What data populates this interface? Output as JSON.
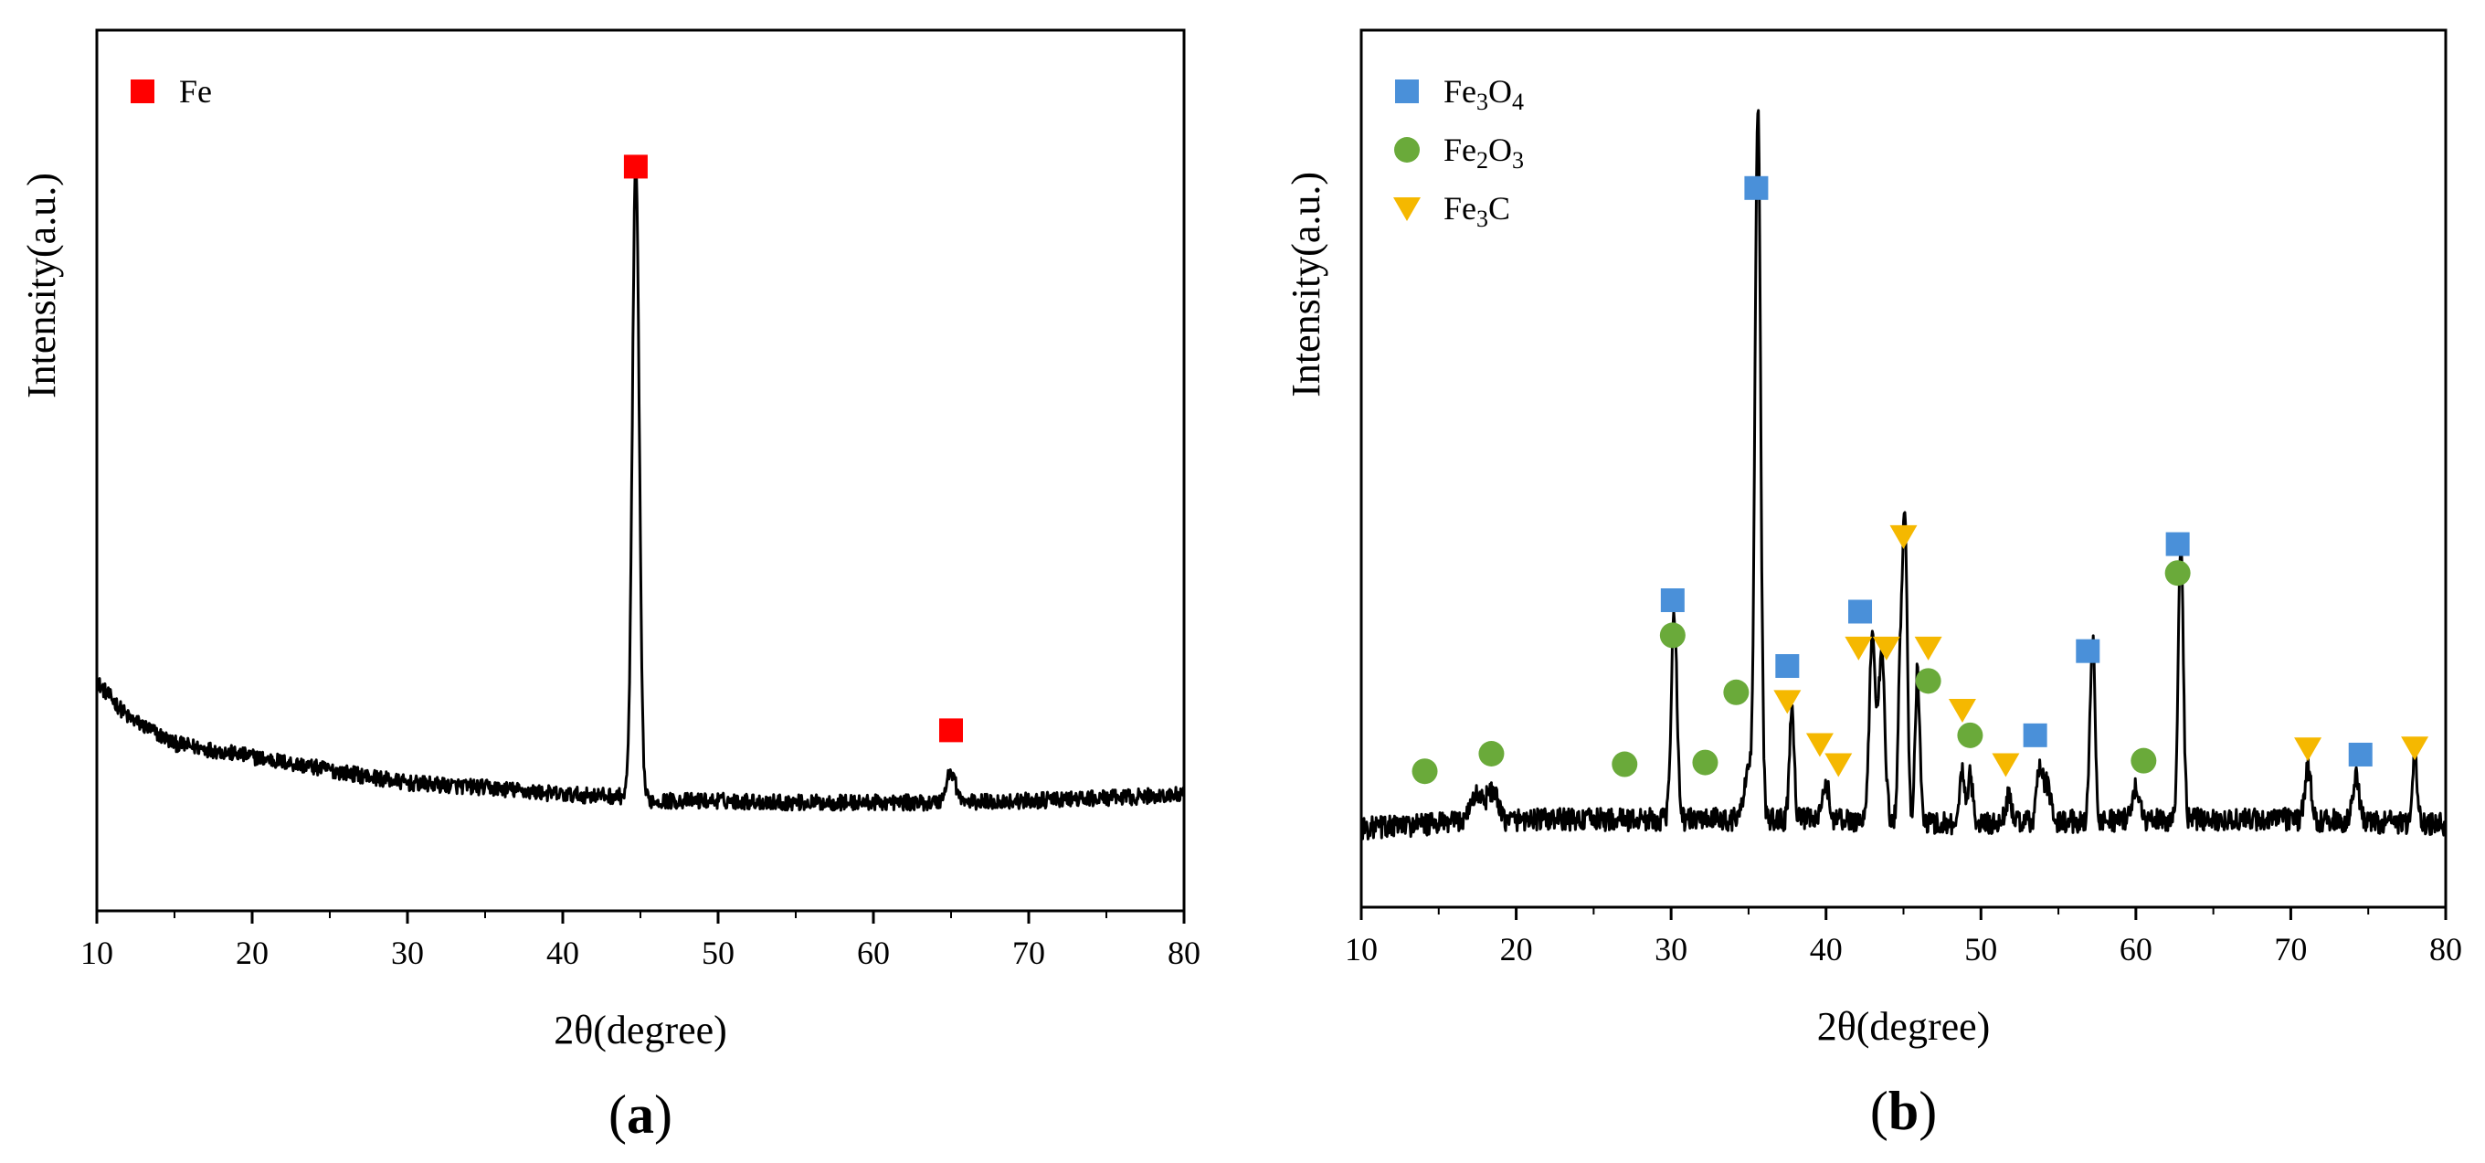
{
  "colors": {
    "fe": "#ff0000",
    "fe3o4": "#4a90d9",
    "fe2o3": "#6aaa3a",
    "fe3c": "#f5b800",
    "trace": "#000000"
  },
  "chart_data": [
    {
      "type": "line",
      "panel_label": {
        "open": "(",
        "letter": "a",
        "close": ")"
      },
      "xlabel": "2θ(degree)",
      "ylabel": "Intensity(a.u.)",
      "xlim": [
        10,
        80
      ],
      "ylim": [
        0,
        100
      ],
      "xticks": [
        "10",
        "20",
        "30",
        "40",
        "50",
        "60",
        "70",
        "80"
      ],
      "yticks_shown": false,
      "grid": false,
      "legend_position": "top-left",
      "legend": [
        {
          "label_base": "Fe",
          "label_parts": [],
          "marker": "square",
          "color_key": "fe"
        }
      ],
      "baseline": [
        [
          10,
          26
        ],
        [
          12,
          22
        ],
        [
          15,
          19
        ],
        [
          20,
          17.5
        ],
        [
          25,
          16
        ],
        [
          30,
          14.5
        ],
        [
          35,
          14
        ],
        [
          40,
          13.2
        ],
        [
          44,
          13
        ],
        [
          46,
          12.5
        ],
        [
          50,
          12.5
        ],
        [
          55,
          12.3
        ],
        [
          60,
          12.3
        ],
        [
          65,
          12.3
        ],
        [
          70,
          12.5
        ],
        [
          75,
          12.8
        ],
        [
          80,
          13.2
        ]
      ],
      "peaks": [
        {
          "x": 44.7,
          "height": 72,
          "width": 0.22
        },
        {
          "x": 65.0,
          "height": 3.5,
          "width": 0.3
        }
      ],
      "noise": 0.9,
      "markers": [
        {
          "phase": "Fe",
          "marker": "square",
          "color_key": "fe",
          "x": 44.7,
          "y": 84.5
        },
        {
          "phase": "Fe",
          "marker": "square",
          "color_key": "fe",
          "x": 65.0,
          "y": 20.5
        }
      ]
    },
    {
      "type": "line",
      "panel_label": {
        "open": "(",
        "letter": "b",
        "close": ")"
      },
      "xlabel": "2θ(degree)",
      "ylabel": "Intensity(a.u.)",
      "xlim": [
        10,
        80
      ],
      "ylim": [
        0,
        100
      ],
      "xticks": [
        "10",
        "20",
        "30",
        "40",
        "50",
        "60",
        "70",
        "80"
      ],
      "yticks_shown": false,
      "grid": false,
      "legend_position": "top-left",
      "legend": [
        {
          "label_base": "Fe",
          "label_parts": [
            {
              "t": "3",
              "sub": true
            },
            {
              "t": "O",
              "sub": false
            },
            {
              "t": "4",
              "sub": true
            }
          ],
          "marker": "square",
          "color_key": "fe3o4"
        },
        {
          "label_base": "Fe",
          "label_parts": [
            {
              "t": "2",
              "sub": true
            },
            {
              "t": "O",
              "sub": false
            },
            {
              "t": "3",
              "sub": true
            }
          ],
          "marker": "circle",
          "color_key": "fe2o3"
        },
        {
          "label_base": "Fe",
          "label_parts": [
            {
              "t": "3",
              "sub": true
            },
            {
              "t": "C",
              "sub": false
            }
          ],
          "marker": "triangle-down",
          "color_key": "fe3c"
        }
      ],
      "baseline": [
        [
          10,
          9
        ],
        [
          20,
          10
        ],
        [
          30,
          10
        ],
        [
          40,
          10
        ],
        [
          50,
          9.5
        ],
        [
          60,
          10
        ],
        [
          70,
          10
        ],
        [
          80,
          9.5
        ]
      ],
      "peaks": [
        {
          "x": 17.5,
          "height": 3,
          "width": 0.5
        },
        {
          "x": 18.5,
          "height": 3,
          "width": 0.3
        },
        {
          "x": 30.2,
          "height": 24,
          "width": 0.18
        },
        {
          "x": 35.6,
          "height": 81,
          "width": 0.18
        },
        {
          "x": 35.0,
          "height": 5,
          "width": 0.3
        },
        {
          "x": 37.8,
          "height": 13,
          "width": 0.15
        },
        {
          "x": 40.0,
          "height": 4,
          "width": 0.2
        },
        {
          "x": 43.0,
          "height": 21,
          "width": 0.2
        },
        {
          "x": 43.6,
          "height": 19,
          "width": 0.2
        },
        {
          "x": 44.8,
          "height": 17,
          "width": 0.15
        },
        {
          "x": 45.1,
          "height": 33,
          "width": 0.15
        },
        {
          "x": 45.9,
          "height": 17,
          "width": 0.15
        },
        {
          "x": 48.8,
          "height": 6,
          "width": 0.15
        },
        {
          "x": 49.3,
          "height": 6,
          "width": 0.15
        },
        {
          "x": 51.8,
          "height": 3,
          "width": 0.2
        },
        {
          "x": 53.8,
          "height": 6,
          "width": 0.2
        },
        {
          "x": 54.3,
          "height": 4,
          "width": 0.2
        },
        {
          "x": 57.2,
          "height": 21,
          "width": 0.16
        },
        {
          "x": 60.0,
          "height": 4,
          "width": 0.2
        },
        {
          "x": 62.9,
          "height": 32,
          "width": 0.16
        },
        {
          "x": 71.1,
          "height": 6,
          "width": 0.2
        },
        {
          "x": 74.2,
          "height": 5,
          "width": 0.2
        },
        {
          "x": 78.0,
          "height": 8,
          "width": 0.15
        }
      ],
      "noise": 1.3,
      "markers": [
        {
          "phase": "Fe2O3",
          "marker": "circle",
          "color_key": "fe2o3",
          "x": 14.1,
          "y": 15.5
        },
        {
          "phase": "Fe2O3",
          "marker": "circle",
          "color_key": "fe2o3",
          "x": 18.4,
          "y": 17.5
        },
        {
          "phase": "Fe2O3",
          "marker": "circle",
          "color_key": "fe2o3",
          "x": 27.0,
          "y": 16.3
        },
        {
          "phase": "Fe3O4",
          "marker": "square",
          "color_key": "fe3o4",
          "x": 30.1,
          "y": 35
        },
        {
          "phase": "Fe2O3",
          "marker": "circle",
          "color_key": "fe2o3",
          "x": 30.1,
          "y": 31
        },
        {
          "phase": "Fe2O3",
          "marker": "circle",
          "color_key": "fe2o3",
          "x": 32.2,
          "y": 16.5
        },
        {
          "phase": "Fe2O3",
          "marker": "circle",
          "color_key": "fe2o3",
          "x": 34.2,
          "y": 24.5
        },
        {
          "phase": "Fe3O4",
          "marker": "square",
          "color_key": "fe3o4",
          "x": 35.5,
          "y": 82
        },
        {
          "phase": "Fe3O4",
          "marker": "square",
          "color_key": "fe3o4",
          "x": 37.5,
          "y": 27.5
        },
        {
          "phase": "Fe3C",
          "marker": "triangle-down",
          "color_key": "fe3c",
          "x": 37.5,
          "y": 23.5
        },
        {
          "phase": "Fe3C",
          "marker": "triangle-down",
          "color_key": "fe3c",
          "x": 39.6,
          "y": 18.6
        },
        {
          "phase": "Fe3C",
          "marker": "triangle-down",
          "color_key": "fe3c",
          "x": 40.8,
          "y": 16.3
        },
        {
          "phase": "Fe3O4",
          "marker": "square",
          "color_key": "fe3o4",
          "x": 42.2,
          "y": 33.7
        },
        {
          "phase": "Fe3C",
          "marker": "triangle-down",
          "color_key": "fe3c",
          "x": 42.1,
          "y": 29.6
        },
        {
          "phase": "Fe3C",
          "marker": "triangle-down",
          "color_key": "fe3c",
          "x": 43.9,
          "y": 29.6
        },
        {
          "phase": "Fe3C",
          "marker": "triangle-down",
          "color_key": "fe3c",
          "x": 45.0,
          "y": 42.3
        },
        {
          "phase": "Fe3C",
          "marker": "triangle-down",
          "color_key": "fe3c",
          "x": 46.6,
          "y": 29.6
        },
        {
          "phase": "Fe2O3",
          "marker": "circle",
          "color_key": "fe2o3",
          "x": 46.6,
          "y": 25.8
        },
        {
          "phase": "Fe3C",
          "marker": "triangle-down",
          "color_key": "fe3c",
          "x": 48.8,
          "y": 22.5
        },
        {
          "phase": "Fe2O3",
          "marker": "circle",
          "color_key": "fe2o3",
          "x": 49.3,
          "y": 19.6
        },
        {
          "phase": "Fe3C",
          "marker": "triangle-down",
          "color_key": "fe3c",
          "x": 51.6,
          "y": 16.3
        },
        {
          "phase": "Fe3O4",
          "marker": "square",
          "color_key": "fe3o4",
          "x": 53.5,
          "y": 19.6
        },
        {
          "phase": "Fe3O4",
          "marker": "square",
          "color_key": "fe3o4",
          "x": 56.9,
          "y": 29.2
        },
        {
          "phase": "Fe2O3",
          "marker": "circle",
          "color_key": "fe2o3",
          "x": 60.5,
          "y": 16.7
        },
        {
          "phase": "Fe3O4",
          "marker": "square",
          "color_key": "fe3o4",
          "x": 62.7,
          "y": 41.4
        },
        {
          "phase": "Fe2O3",
          "marker": "circle",
          "color_key": "fe2o3",
          "x": 62.7,
          "y": 38.1
        },
        {
          "phase": "Fe3C",
          "marker": "triangle-down",
          "color_key": "fe3c",
          "x": 71.1,
          "y": 18.1
        },
        {
          "phase": "Fe3O4",
          "marker": "square",
          "color_key": "fe3o4",
          "x": 74.5,
          "y": 17.4
        },
        {
          "phase": "Fe3C",
          "marker": "triangle-down",
          "color_key": "fe3c",
          "x": 78.0,
          "y": 18.2
        }
      ]
    }
  ]
}
